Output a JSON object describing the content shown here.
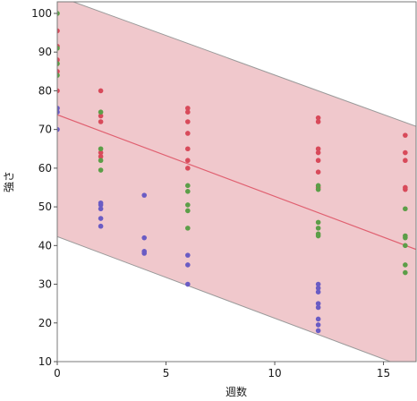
{
  "chart_data": {
    "type": "scatter",
    "xlabel": "週数",
    "ylabel": "強さ",
    "xlim": [
      0,
      16.5
    ],
    "ylim": [
      10,
      103
    ],
    "x_ticks": [
      0,
      5,
      10,
      15
    ],
    "y_ticks": [
      10,
      20,
      30,
      40,
      50,
      60,
      70,
      80,
      90,
      100
    ],
    "grid": false,
    "fit_line": {
      "x": [
        0,
        16.5
      ],
      "y": [
        73.8,
        39.0
      ],
      "color": "#e06070"
    },
    "prediction_band": {
      "lower": {
        "x": [
          0,
          16.5
        ],
        "y": [
          42.3,
          7.5
        ]
      },
      "upper": {
        "x": [
          0,
          16.5
        ],
        "y": [
          104.5,
          70.8
        ]
      },
      "fill": "#f0c8cc",
      "edge": "#9a9a9a"
    },
    "series": [
      {
        "color": "#d84a5a",
        "points": [
          [
            0,
            95.5
          ],
          [
            0,
            91.5
          ],
          [
            0,
            88
          ],
          [
            0,
            85
          ],
          [
            0,
            80
          ],
          [
            2,
            80
          ],
          [
            2,
            73.5
          ],
          [
            2,
            72
          ],
          [
            2,
            64
          ],
          [
            2,
            63
          ],
          [
            6,
            75.5
          ],
          [
            6,
            74.5
          ],
          [
            6,
            72
          ],
          [
            6,
            69
          ],
          [
            6,
            65
          ],
          [
            6,
            62
          ],
          [
            6,
            60
          ],
          [
            12,
            73
          ],
          [
            12,
            72
          ],
          [
            12,
            65
          ],
          [
            12,
            64
          ],
          [
            12,
            62
          ],
          [
            12,
            59
          ],
          [
            12,
            55
          ],
          [
            16,
            68.5
          ],
          [
            16,
            64
          ],
          [
            16,
            62
          ],
          [
            16,
            55
          ],
          [
            16,
            54.5
          ]
        ]
      },
      {
        "color": "#5c9e48",
        "points": [
          [
            0,
            100
          ],
          [
            0,
            91
          ],
          [
            0,
            87
          ],
          [
            0,
            84
          ],
          [
            2,
            74.5
          ],
          [
            2,
            65
          ],
          [
            2,
            62
          ],
          [
            2,
            59.5
          ],
          [
            6,
            55.5
          ],
          [
            6,
            54
          ],
          [
            6,
            50.5
          ],
          [
            6,
            49
          ],
          [
            6,
            44.5
          ],
          [
            12,
            55.5
          ],
          [
            12,
            54.5
          ],
          [
            12,
            46
          ],
          [
            12,
            44.5
          ],
          [
            12,
            43
          ],
          [
            12,
            42.5
          ],
          [
            16,
            49.5
          ],
          [
            16,
            42.5
          ],
          [
            16,
            42
          ],
          [
            16,
            40
          ],
          [
            16,
            35
          ],
          [
            16,
            33
          ]
        ]
      },
      {
        "color": "#6a5cc4",
        "points": [
          [
            0,
            75.5
          ],
          [
            0,
            74.5
          ],
          [
            0,
            70
          ],
          [
            2,
            51
          ],
          [
            2,
            50.5
          ],
          [
            2,
            49.5
          ],
          [
            2,
            47
          ],
          [
            2,
            45
          ],
          [
            4,
            53
          ],
          [
            4,
            42
          ],
          [
            4,
            38.5
          ],
          [
            4,
            38
          ],
          [
            6,
            37.5
          ],
          [
            6,
            35
          ],
          [
            6,
            30
          ],
          [
            12,
            30
          ],
          [
            12,
            29
          ],
          [
            12,
            28
          ],
          [
            12,
            25
          ],
          [
            12,
            24
          ],
          [
            12,
            21
          ],
          [
            12,
            19.5
          ],
          [
            12,
            18
          ]
        ]
      }
    ]
  }
}
